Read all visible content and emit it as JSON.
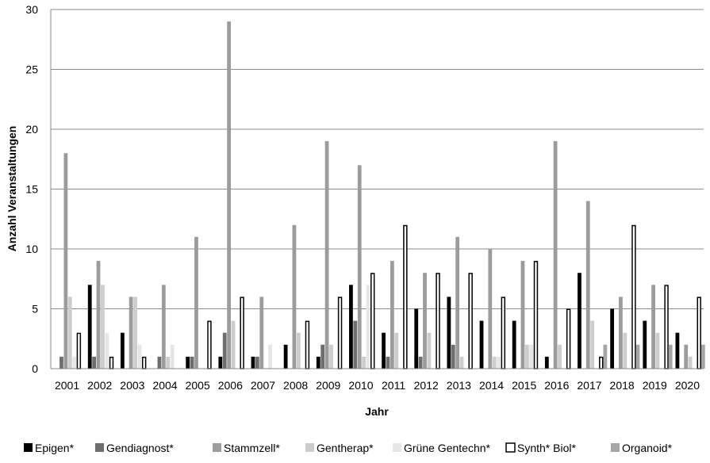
{
  "chart_data": {
    "type": "bar",
    "xlabel": "Jahr",
    "ylabel": "Anzahl Veranstaltungen",
    "ylim": [
      0,
      30
    ],
    "yticks": [
      "0",
      "5",
      "10",
      "15",
      "20",
      "25",
      "30"
    ],
    "grid": true,
    "legend_position": "bottom",
    "categories": [
      "2001",
      "2002",
      "2003",
      "2004",
      "2005",
      "2006",
      "2007",
      "2008",
      "2009",
      "2010",
      "2011",
      "2012",
      "2013",
      "2014",
      "2015",
      "2016",
      "2017",
      "2018",
      "2019",
      "2020"
    ],
    "series": [
      {
        "name": "Epigen*",
        "color": "#000000",
        "outline": "#000000",
        "values": [
          0,
          7,
          3,
          0,
          1,
          1,
          1,
          2,
          1,
          7,
          3,
          5,
          6,
          4,
          4,
          1,
          8,
          5,
          4,
          3
        ]
      },
      {
        "name": "Gendiagnost*",
        "color": "#6e6e6e",
        "outline": "#6e6e6e",
        "values": [
          1,
          1,
          0,
          1,
          1,
          3,
          1,
          0,
          2,
          4,
          1,
          1,
          2,
          0,
          0,
          0,
          0,
          0,
          0,
          0
        ]
      },
      {
        "name": "Stammzell*",
        "color": "#9c9c9c",
        "outline": "#9c9c9c",
        "values": [
          18,
          9,
          6,
          7,
          11,
          29,
          6,
          12,
          19,
          17,
          9,
          8,
          11,
          10,
          9,
          19,
          14,
          6,
          7,
          2
        ]
      },
      {
        "name": "Gentherap*",
        "color": "#cdcdcd",
        "outline": "#cdcdcd",
        "values": [
          6,
          7,
          6,
          1,
          0,
          4,
          0,
          3,
          2,
          1,
          3,
          3,
          1,
          1,
          2,
          2,
          4,
          3,
          3,
          1
        ]
      },
      {
        "name": "Grüne Gentechn*",
        "color": "#e6e6e6",
        "outline": "#e6e6e6",
        "values": [
          1,
          3,
          2,
          2,
          0,
          0,
          2,
          0,
          0,
          7,
          0,
          0,
          0,
          1,
          2,
          0,
          0,
          0,
          0,
          0
        ]
      },
      {
        "name": "Synth* Biol*",
        "color": "#ffffff",
        "outline": "#000000",
        "values": [
          3,
          1,
          1,
          0,
          4,
          6,
          0,
          4,
          6,
          8,
          12,
          8,
          8,
          6,
          9,
          5,
          1,
          12,
          7,
          6
        ]
      },
      {
        "name": "Organoid*",
        "color": "#a6a6a6",
        "outline": "#a6a6a6",
        "values": [
          0,
          0,
          0,
          0,
          0,
          0,
          0,
          0,
          0,
          0,
          0,
          0,
          0,
          0,
          0,
          0,
          2,
          2,
          2,
          2
        ]
      }
    ]
  }
}
